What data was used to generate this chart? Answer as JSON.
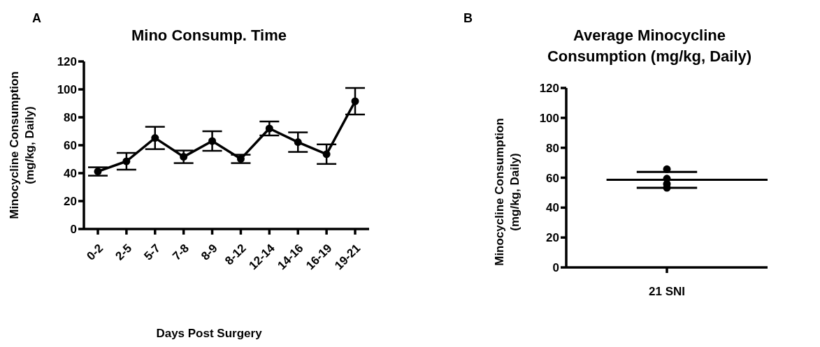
{
  "chart_data": [
    {
      "type": "line",
      "title": "Mino Consump. Time",
      "xlabel": "Days Post Surgery",
      "ylabel": "Minocycline Consumption\n(mg/kg, Daily)",
      "annotations": [
        "A"
      ],
      "categories": [
        "0-2",
        "2-5",
        "5-7",
        "7-8",
        "8-9",
        "8-12",
        "12-14",
        "14-16",
        "16-19",
        "19-21"
      ],
      "series": [
        {
          "color": "#000000",
          "values": [
            41.2,
            48.5,
            65.2,
            51.7,
            63,
            50.2,
            72,
            62.2,
            53.6,
            91.5
          ],
          "errors": [
            3,
            6,
            8,
            4.5,
            7,
            3,
            5,
            7,
            7,
            9.5
          ]
        }
      ],
      "ylim": [
        0,
        120
      ],
      "yticks": [
        0,
        20,
        40,
        60,
        80,
        100,
        120
      ],
      "marker": "circle",
      "line_style": "solid"
    },
    {
      "type": "scatter",
      "title": "Average Minocycline\nConsumption (mg/kg, Daily)",
      "ylabel": "Minocycline Consumption\n(mg/kg, Daily)",
      "annotations": [
        "B"
      ],
      "categories": [
        "21 SNI"
      ],
      "series": [
        {
          "type": "scatter",
          "color": "#000000",
          "x": [
            "21 SNI",
            "21 SNI",
            "21 SNI",
            "21 SNI"
          ],
          "values": [
            65.7,
            59.4,
            55.8,
            53.2
          ],
          "marker": "circle"
        }
      ],
      "ref_lines": [
        {
          "axis": "y",
          "value": 58.6,
          "color": "#000000"
        },
        {
          "axis": "y",
          "value": 63.9,
          "color": "#000000"
        },
        {
          "axis": "y",
          "value": 53.2,
          "color": "#000000"
        }
      ],
      "ylim": [
        0,
        120
      ],
      "yticks": [
        0,
        20,
        40,
        60,
        80,
        100,
        120
      ]
    }
  ]
}
